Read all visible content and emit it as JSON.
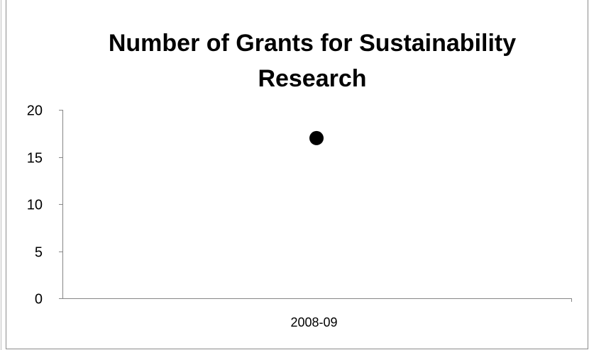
{
  "chart_data": {
    "type": "scatter",
    "title": "Number of Grants for Sustainability Research",
    "xlabel": "",
    "ylabel": "",
    "categories": [
      "2008-09"
    ],
    "series": [
      {
        "values": [
          17
        ]
      }
    ],
    "ylim": [
      0,
      20
    ],
    "yticks": [
      "0",
      "5",
      "10",
      "15",
      "20"
    ],
    "grid": false,
    "legend": "none",
    "marker_color": "#000000",
    "axis_color": "#868686"
  }
}
